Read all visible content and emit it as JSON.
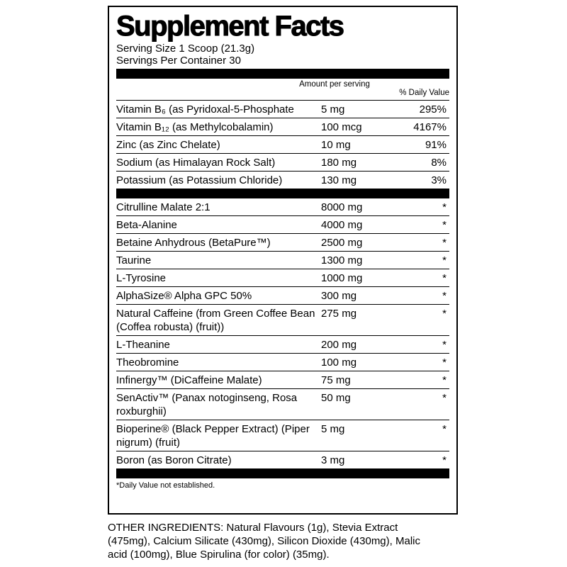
{
  "header": {
    "title": "Supplement Facts",
    "serving_size": "Serving Size 1 Scoop (21.3g)",
    "servings_per_container": "Servings Per Container 30"
  },
  "table": {
    "columns": [
      "Amount per serving",
      "% Daily Value"
    ],
    "vitamins": [
      [
        "Vitamin B₆ (as Pyridoxal-5-Phosphate",
        "5 mg",
        "295%"
      ],
      [
        "Vitamin B₁₂ (as Methylcobalamin)",
        "100 mcg",
        "4167%"
      ],
      [
        "Zinc (as Zinc Chelate)",
        "10 mg",
        "91%"
      ],
      [
        "Sodium (as Himalayan Rock Salt)",
        "180 mg",
        "8%"
      ],
      [
        "Potassium (as Potassium Chloride)",
        "130 mg",
        "3%"
      ]
    ],
    "ingredients": [
      [
        "Citrulline Malate 2:1",
        "8000 mg",
        "*"
      ],
      [
        "Beta-Alanine",
        "4000 mg",
        "*"
      ],
      [
        "Betaine Anhydrous (BetaPure™)",
        "2500 mg",
        "*"
      ],
      [
        "Taurine",
        "1300 mg",
        "*"
      ],
      [
        "L-Tyrosine",
        "1000 mg",
        "*"
      ],
      [
        "AlphaSize® Alpha GPC 50%",
        "300 mg",
        "*"
      ],
      [
        "Natural Caffeine (from Green Coffee Bean (Coffea robusta) (fruit))",
        "275 mg",
        "*"
      ],
      [
        "L-Theanine",
        "200 mg",
        "*"
      ],
      [
        "Theobromine",
        "100 mg",
        "*"
      ],
      [
        "Infinergy™ (DiCaffeine Malate)",
        "75 mg",
        "*"
      ],
      [
        "SenActiv™ (Panax notoginseng, Rosa roxburghii)",
        "50 mg",
        "*"
      ],
      [
        "Bioperine® (Black Pepper Extract) (Piper nigrum) (fruit)",
        "5 mg",
        "*"
      ],
      [
        "Boron (as Boron Citrate)",
        "3 mg",
        "*"
      ]
    ]
  },
  "footnote": "*Daily Value not established.",
  "other_ingredients": "OTHER INGREDIENTS: Natural Flavours (1g), Stevia Extract (475mg), Calcium Silicate (430mg), Silicon Dioxide (430mg), Malic acid (100mg), Blue Spirulina (for color) (35mg)."
}
